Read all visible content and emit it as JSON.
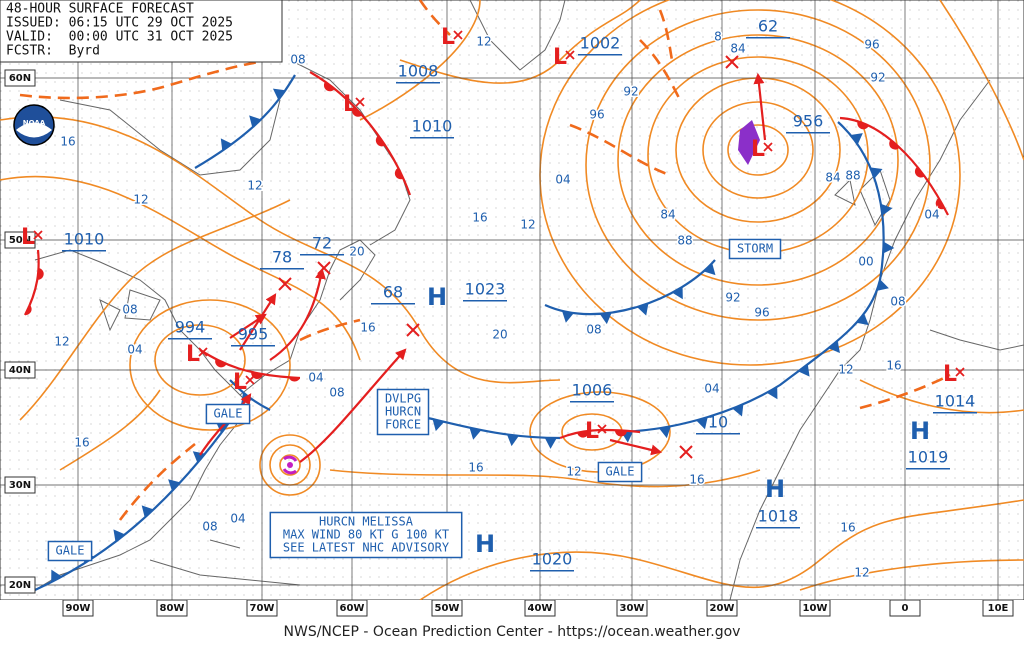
{
  "header": {
    "lines": [
      "48-HOUR SURFACE FORECAST",
      "ISSUED: 06:15 UTC 29 OCT 2025",
      "VALID:  00:00 UTC 31 OCT 2025",
      "FCSTR:  Byrd"
    ]
  },
  "logo": "NOAA",
  "footer": "NWS/NCEP - Ocean Prediction Center - https://ocean.weather.gov",
  "lat_labels": [
    "60N",
    "50N",
    "40N",
    "30N",
    "20N"
  ],
  "lon_labels": [
    "90W",
    "80W",
    "70W",
    "60W",
    "50W",
    "40W",
    "30W",
    "20W",
    "10W",
    "0",
    "10E"
  ],
  "lows": [
    "L",
    "L",
    "L",
    "L",
    "L",
    "L",
    "L",
    "L",
    "L"
  ],
  "highs": [
    "H",
    "H",
    "H",
    "H"
  ],
  "pressure_labels": [
    "1008",
    "1010",
    "1002",
    "62",
    "956",
    "1010",
    "994",
    "995",
    "78",
    "72",
    "68",
    "1023",
    "1006",
    "10",
    "1014",
    "1019",
    "1018",
    "1020"
  ],
  "isobar_labels": [
    "12",
    "08",
    "16",
    "12",
    "12",
    "16",
    "12",
    "20",
    "16",
    "20",
    "08",
    "04",
    "12",
    "04",
    "08",
    "16",
    "16",
    "12",
    "16",
    "08",
    "04",
    "16",
    "12",
    "16",
    "04",
    "96",
    "92",
    "84",
    "88",
    "92",
    "96",
    "08",
    "04",
    "12",
    "16",
    "08",
    "00",
    "88",
    "84",
    "04",
    "96",
    "92",
    "8",
    "84"
  ],
  "boxes": [
    {
      "lines": [
        "GALE"
      ]
    },
    {
      "lines": [
        "GALE"
      ]
    },
    {
      "lines": [
        "GALE"
      ]
    },
    {
      "lines": [
        "STORM"
      ]
    },
    {
      "lines": [
        "DVLPG",
        "HURCN",
        "FORCE"
      ]
    },
    {
      "lines": [
        "HURCN MELISSA",
        "MAX WIND 80 KT G 100 KT",
        "SEE LATEST NHC ADVISORY"
      ]
    }
  ]
}
